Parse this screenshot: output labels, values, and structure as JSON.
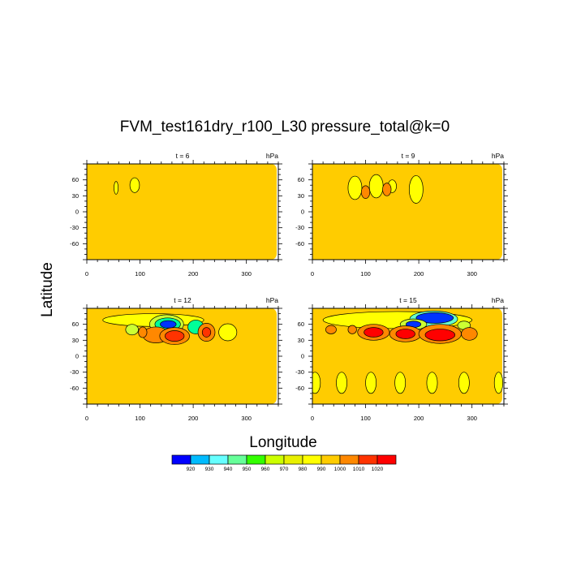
{
  "chart_data": {
    "type": "contour",
    "title": "FVM_test161dry_r100_L30 pressure_total@k=0",
    "xlabel": "Longitude",
    "ylabel": "Latitude",
    "xlim": [
      0,
      360
    ],
    "ylim": [
      -90,
      90
    ],
    "x_ticks": [
      "0",
      "100",
      "200",
      "300"
    ],
    "y_ticks": [
      "60",
      "30",
      "0",
      "-30",
      "-60"
    ],
    "units": "hPa",
    "background_level_color": "#ffcc00",
    "panels": [
      {
        "label": "t = 6",
        "features": [
          {
            "kind": "closed-contour",
            "x": 55,
            "y": 45,
            "rx": 4,
            "ry": 12,
            "color": "#ffff00"
          },
          {
            "kind": "closed-contour",
            "x": 90,
            "y": 50,
            "rx": 9,
            "ry": 14,
            "color": "#ffff00"
          }
        ]
      },
      {
        "label": "t = 9",
        "features": [
          {
            "kind": "closed-contour",
            "x": 80,
            "y": 45,
            "rx": 13,
            "ry": 22,
            "color": "#ffff00"
          },
          {
            "kind": "closed-contour",
            "x": 120,
            "y": 48,
            "rx": 13,
            "ry": 22,
            "color": "#ffff00"
          },
          {
            "kind": "closed-contour",
            "x": 150,
            "y": 48,
            "rx": 8,
            "ry": 12,
            "color": "#ffff00"
          },
          {
            "kind": "closed-contour",
            "x": 195,
            "y": 42,
            "rx": 13,
            "ry": 26,
            "color": "#ffff00"
          },
          {
            "kind": "closed-contour",
            "x": 100,
            "y": 37,
            "rx": 8,
            "ry": 12,
            "color": "#ff8800"
          },
          {
            "kind": "closed-contour",
            "x": 140,
            "y": 42,
            "rx": 8,
            "ry": 12,
            "color": "#ff8800"
          }
        ]
      },
      {
        "label": "t = 12",
        "features": [
          {
            "kind": "closed-contour",
            "x": 125,
            "y": 68,
            "rx": 95,
            "ry": 12,
            "color": "#ffff00"
          },
          {
            "kind": "closed-contour",
            "x": 150,
            "y": 60,
            "rx": 32,
            "ry": 18,
            "color": "#ccff33"
          },
          {
            "kind": "closed-contour",
            "x": 152,
            "y": 60,
            "rx": 24,
            "ry": 12,
            "color": "#00ff99"
          },
          {
            "kind": "closed-contour",
            "x": 153,
            "y": 60,
            "rx": 15,
            "ry": 7,
            "color": "#0033ff"
          },
          {
            "kind": "closed-contour",
            "x": 205,
            "y": 55,
            "rx": 15,
            "ry": 13,
            "color": "#00ff99"
          },
          {
            "kind": "closed-contour",
            "x": 85,
            "y": 50,
            "rx": 12,
            "ry": 10,
            "color": "#ccff33"
          },
          {
            "kind": "closed-contour",
            "x": 130,
            "y": 40,
            "rx": 25,
            "ry": 15,
            "color": "#ff8800"
          },
          {
            "kind": "closed-contour",
            "x": 165,
            "y": 38,
            "rx": 28,
            "ry": 16,
            "color": "#ff8800"
          },
          {
            "kind": "closed-contour",
            "x": 165,
            "y": 38,
            "rx": 18,
            "ry": 10,
            "color": "#ff3300"
          },
          {
            "kind": "closed-contour",
            "x": 225,
            "y": 45,
            "rx": 16,
            "ry": 17,
            "color": "#ff8800"
          },
          {
            "kind": "closed-contour",
            "x": 225,
            "y": 45,
            "rx": 8,
            "ry": 9,
            "color": "#ff3300"
          },
          {
            "kind": "closed-contour",
            "x": 265,
            "y": 45,
            "rx": 17,
            "ry": 16,
            "color": "#ffff00"
          },
          {
            "kind": "closed-contour",
            "x": 105,
            "y": 45,
            "rx": 8,
            "ry": 10,
            "color": "#ff8800"
          }
        ]
      },
      {
        "label": "t = 15",
        "features": [
          {
            "kind": "closed-contour",
            "x": 160,
            "y": 68,
            "rx": 140,
            "ry": 16,
            "color": "#ffff00"
          },
          {
            "kind": "closed-contour",
            "x": 228,
            "y": 70,
            "rx": 45,
            "ry": 15,
            "color": "#66ffcc"
          },
          {
            "kind": "closed-contour",
            "x": 230,
            "y": 72,
            "rx": 35,
            "ry": 10,
            "color": "#0033ff"
          },
          {
            "kind": "closed-contour",
            "x": 190,
            "y": 60,
            "rx": 25,
            "ry": 10,
            "color": "#ccff33"
          },
          {
            "kind": "closed-contour",
            "x": 190,
            "y": 60,
            "rx": 14,
            "ry": 6,
            "color": "#0033ff"
          },
          {
            "kind": "closed-contour",
            "x": 285,
            "y": 58,
            "rx": 12,
            "ry": 8,
            "color": "#ccff33"
          },
          {
            "kind": "closed-contour",
            "x": 115,
            "y": 45,
            "rx": 30,
            "ry": 15,
            "color": "#ff8800"
          },
          {
            "kind": "closed-contour",
            "x": 115,
            "y": 45,
            "rx": 18,
            "ry": 9,
            "color": "#ff0000"
          },
          {
            "kind": "closed-contour",
            "x": 175,
            "y": 42,
            "rx": 30,
            "ry": 15,
            "color": "#ff8800"
          },
          {
            "kind": "closed-contour",
            "x": 175,
            "y": 42,
            "rx": 18,
            "ry": 9,
            "color": "#ff0000"
          },
          {
            "kind": "closed-contour",
            "x": 240,
            "y": 42,
            "rx": 40,
            "ry": 18,
            "color": "#ff8800"
          },
          {
            "kind": "closed-contour",
            "x": 240,
            "y": 40,
            "rx": 28,
            "ry": 11,
            "color": "#ff0000"
          },
          {
            "kind": "closed-contour",
            "x": 295,
            "y": 42,
            "rx": 15,
            "ry": 12,
            "color": "#ff8800"
          },
          {
            "kind": "closed-contour",
            "x": 35,
            "y": 50,
            "rx": 10,
            "ry": 8,
            "color": "#ff8800"
          },
          {
            "kind": "closed-contour",
            "x": 75,
            "y": 50,
            "rx": 8,
            "ry": 8,
            "color": "#ff8800"
          },
          {
            "kind": "closed-contour",
            "x": 5,
            "y": -50,
            "rx": 10,
            "ry": 20,
            "color": "#ffff00"
          },
          {
            "kind": "closed-contour",
            "x": 55,
            "y": -50,
            "rx": 10,
            "ry": 20,
            "color": "#ffff00"
          },
          {
            "kind": "closed-contour",
            "x": 110,
            "y": -50,
            "rx": 10,
            "ry": 20,
            "color": "#ffff00"
          },
          {
            "kind": "closed-contour",
            "x": 165,
            "y": -50,
            "rx": 10,
            "ry": 20,
            "color": "#ffff00"
          },
          {
            "kind": "closed-contour",
            "x": 225,
            "y": -50,
            "rx": 10,
            "ry": 20,
            "color": "#ffff00"
          },
          {
            "kind": "closed-contour",
            "x": 285,
            "y": -50,
            "rx": 10,
            "ry": 20,
            "color": "#ffff00"
          },
          {
            "kind": "closed-contour",
            "x": 350,
            "y": -50,
            "rx": 8,
            "ry": 20,
            "color": "#ffff00"
          }
        ]
      }
    ],
    "colorbar": {
      "labels": [
        "920",
        "930",
        "940",
        "950",
        "960",
        "970",
        "980",
        "990",
        "1000",
        "1010",
        "1020"
      ],
      "colors": [
        "#0000ff",
        "#00bbff",
        "#66ffff",
        "#66ff99",
        "#33ff00",
        "#ccff00",
        "#e8f000",
        "#ffff00",
        "#ffcc00",
        "#ff8800",
        "#ff3300",
        "#ff0000"
      ]
    }
  }
}
